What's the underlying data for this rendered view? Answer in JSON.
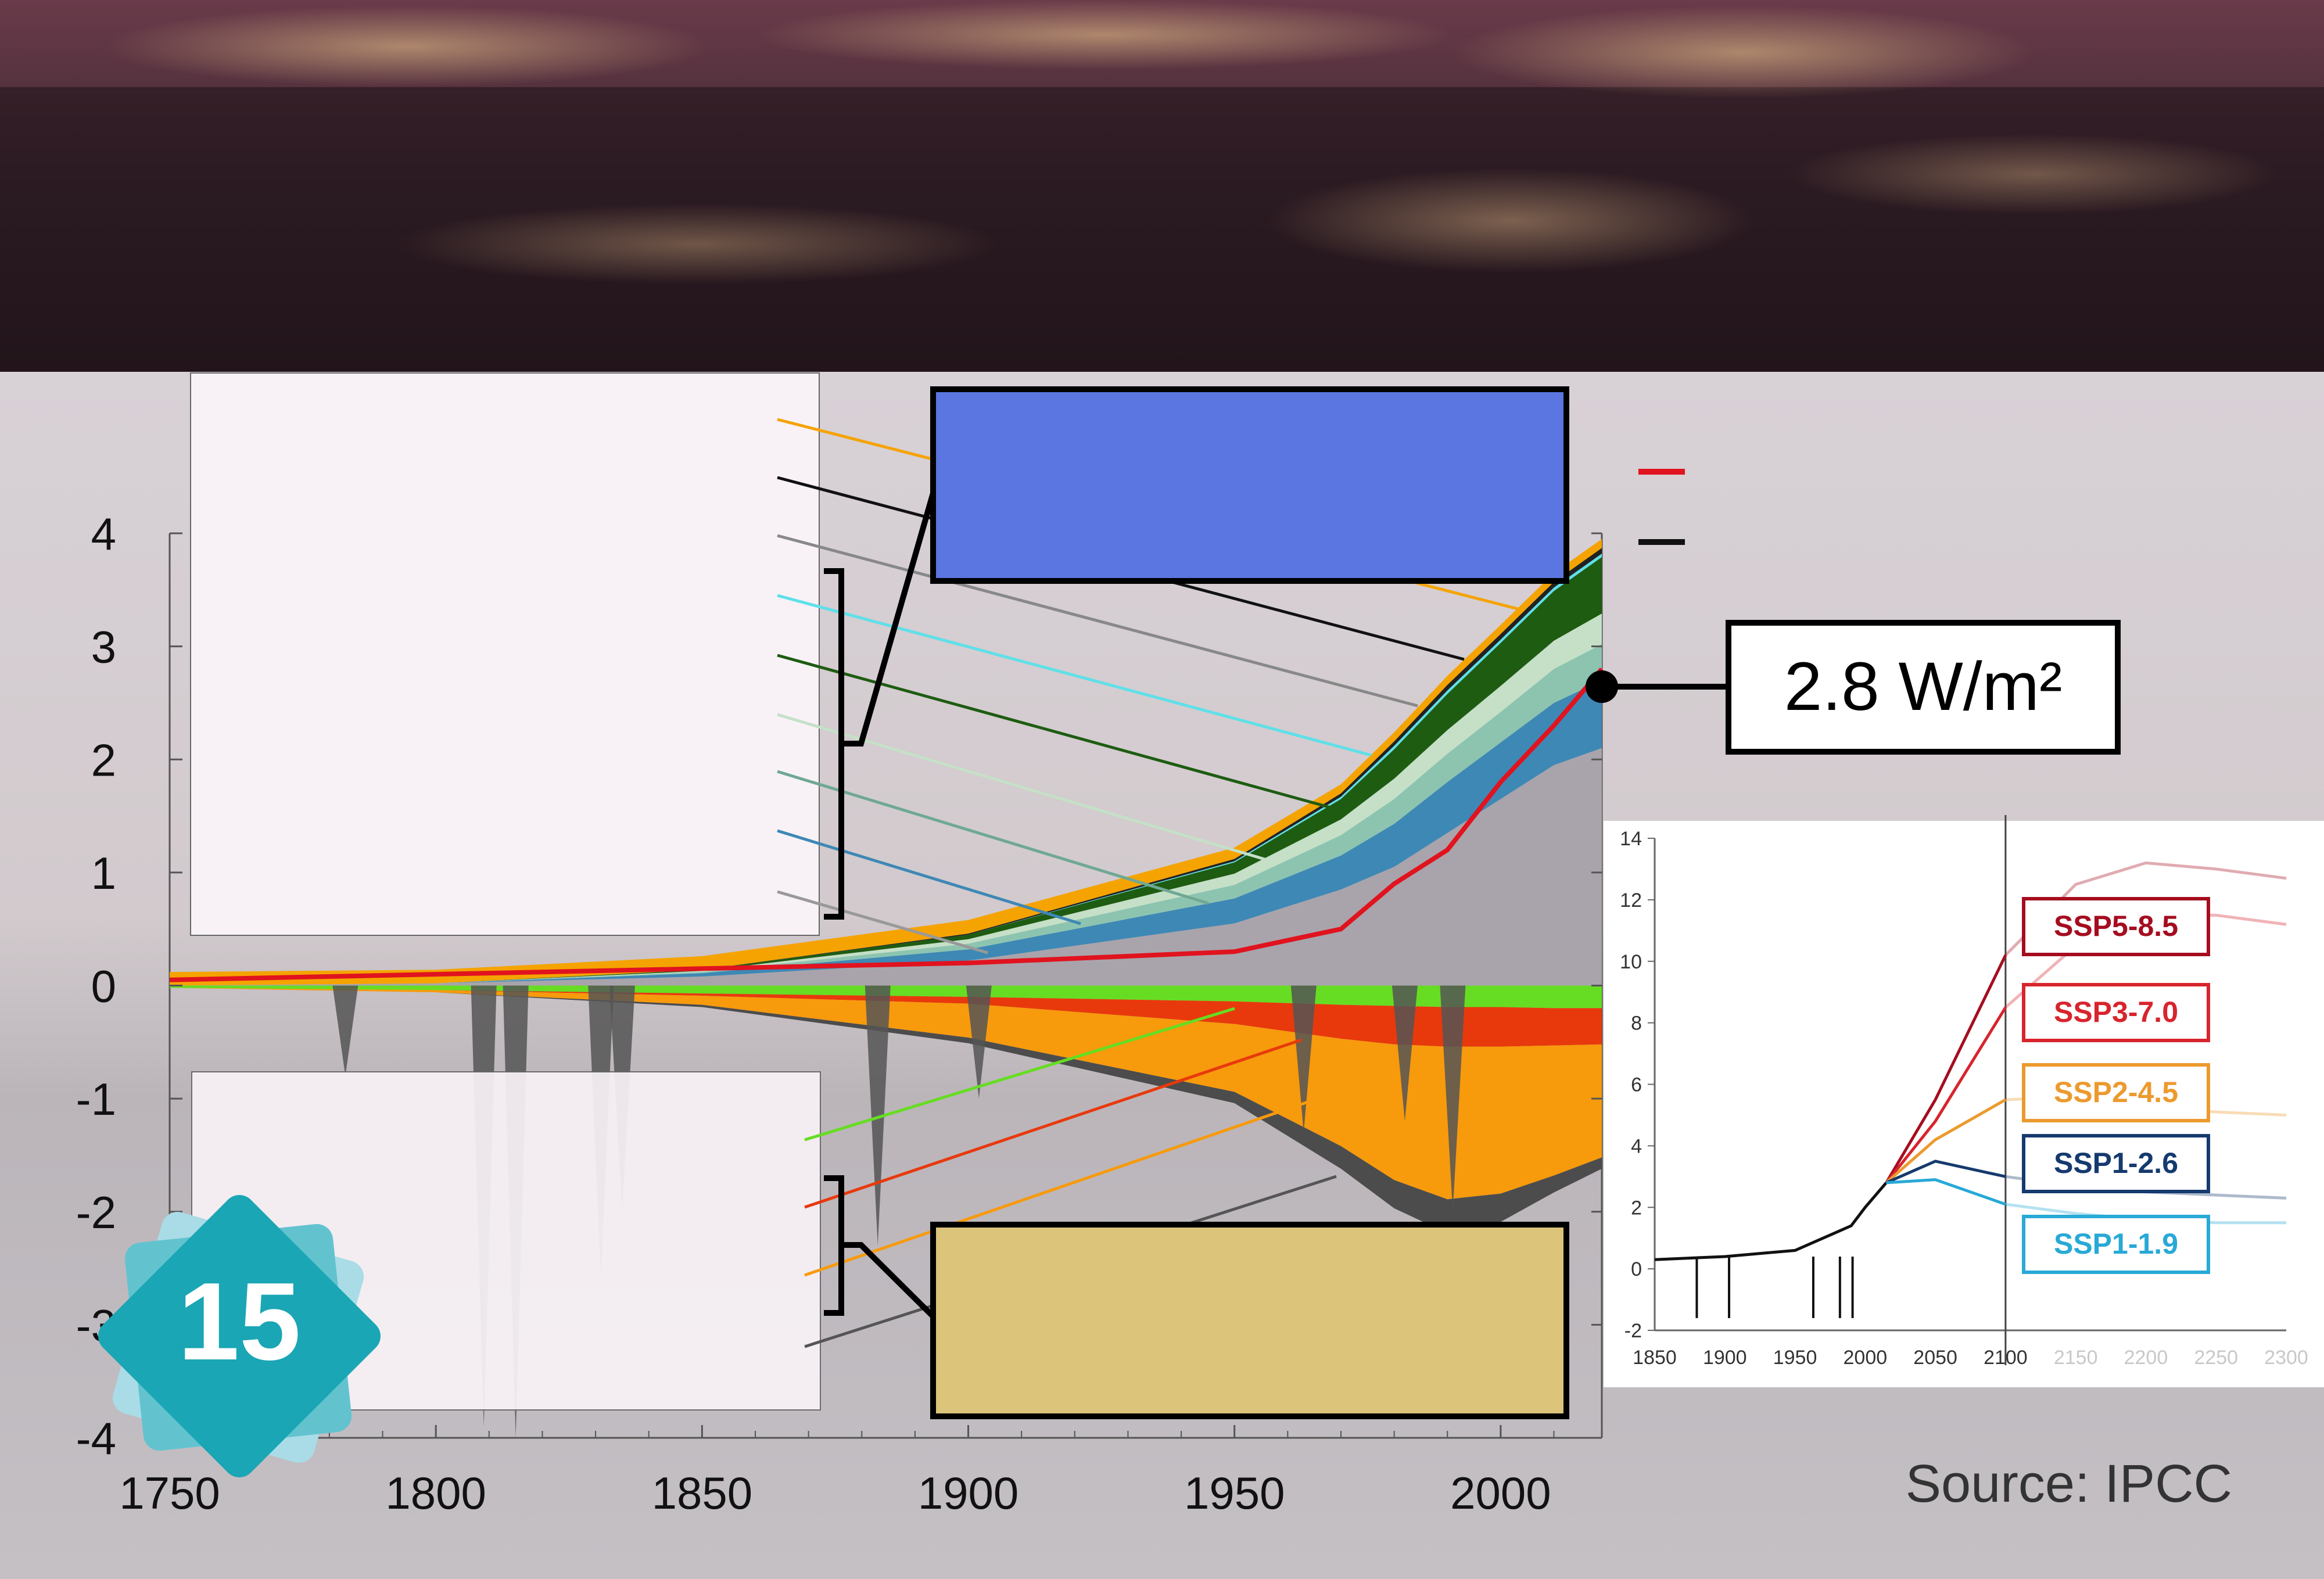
{
  "slide": {
    "number": "15",
    "source": "Source: IPCC",
    "annotation_value": "2.8 W/m²"
  },
  "colors": {
    "sky_top": "#4a2a3a",
    "banner_dark": "#231519",
    "body_bg": "#cfc9ce",
    "positive_box": "#5b76e0",
    "negative_box": "#dcc57a",
    "badge": "#1aa6b5"
  },
  "chart_data": [
    {
      "type": "area",
      "xlim": [
        1750,
        2019
      ],
      "ylim": [
        -4,
        4
      ],
      "x_ticks": [
        "1750",
        "1800",
        "1850",
        "1900",
        "1950",
        "2000"
      ],
      "y_ticks": [
        "4",
        "3",
        "2",
        "1",
        "0",
        "-1",
        "-2",
        "-3",
        "-4"
      ],
      "x": [
        1750,
        1800,
        1850,
        1900,
        1950,
        1970,
        1980,
        1990,
        2000,
        2010,
        2019
      ],
      "positive_stack": [
        {
          "color": "#a9a4ab",
          "values": [
            0.0,
            0.02,
            0.08,
            0.22,
            0.55,
            0.85,
            1.05,
            1.35,
            1.65,
            1.95,
            2.1
          ]
        },
        {
          "color": "#3e88b5",
          "values": [
            0.0,
            0.0,
            0.03,
            0.1,
            0.22,
            0.3,
            0.38,
            0.45,
            0.5,
            0.55,
            0.6
          ]
        },
        {
          "color": "#8cc4b0",
          "values": [
            0.0,
            0.0,
            0.01,
            0.05,
            0.12,
            0.18,
            0.22,
            0.25,
            0.27,
            0.3,
            0.32
          ]
        },
        {
          "color": "#c5e0c7",
          "values": [
            0.0,
            0.0,
            0.01,
            0.04,
            0.1,
            0.14,
            0.18,
            0.21,
            0.23,
            0.25,
            0.27
          ]
        },
        {
          "color": "#1e5c12",
          "values": [
            0.0,
            0.0,
            0.01,
            0.04,
            0.1,
            0.18,
            0.26,
            0.32,
            0.38,
            0.44,
            0.5
          ]
        },
        {
          "color": "#5ee0e8",
          "values": [
            0.0,
            0.0,
            0.0,
            0.0,
            0.01,
            0.02,
            0.03,
            0.03,
            0.03,
            0.03,
            0.03
          ]
        },
        {
          "color": "#222222",
          "values": [
            0.0,
            0.0,
            0.0,
            0.01,
            0.02,
            0.03,
            0.04,
            0.05,
            0.05,
            0.05,
            0.05
          ]
        },
        {
          "color": "#f5a300",
          "values": [
            0.12,
            0.12,
            0.12,
            0.12,
            0.1,
            0.08,
            0.08,
            0.08,
            0.08,
            0.08,
            0.08
          ]
        }
      ],
      "negative_stack": [
        {
          "color": "#66dd22",
          "values": [
            -0.02,
            -0.04,
            -0.07,
            -0.1,
            -0.14,
            -0.17,
            -0.18,
            -0.19,
            -0.19,
            -0.2,
            -0.2
          ]
        },
        {
          "color": "#e8390c",
          "values": [
            0.0,
            0.0,
            -0.02,
            -0.06,
            -0.2,
            -0.3,
            -0.34,
            -0.35,
            -0.35,
            -0.33,
            -0.32
          ]
        },
        {
          "color": "#f79a0c",
          "values": [
            0.0,
            -0.02,
            -0.08,
            -0.3,
            -0.6,
            -0.95,
            -1.2,
            -1.35,
            -1.3,
            -1.15,
            -1.0
          ]
        },
        {
          "color": "#4c4c4c",
          "values": [
            0.0,
            0.0,
            -0.02,
            -0.05,
            -0.1,
            -0.2,
            -0.25,
            -0.3,
            -0.25,
            -0.15,
            -0.1
          ]
        }
      ],
      "net_line": {
        "color": "#e0131f",
        "values": [
          0.05,
          0.1,
          0.15,
          0.2,
          0.3,
          0.5,
          0.9,
          1.2,
          1.8,
          2.3,
          2.8
        ]
      },
      "volcanic_spikes": [
        {
          "x": 1783,
          "y": -0.8
        },
        {
          "x": 1809,
          "y": -3.9
        },
        {
          "x": 1815,
          "y": -4.0
        },
        {
          "x": 1831,
          "y": -2.6
        },
        {
          "x": 1835,
          "y": -2.0
        },
        {
          "x": 1883,
          "y": -2.3
        },
        {
          "x": 1902,
          "y": -1.0
        },
        {
          "x": 1963,
          "y": -1.3
        },
        {
          "x": 1982,
          "y": -1.2
        },
        {
          "x": 1991,
          "y": -2.0
        }
      ]
    },
    {
      "type": "line",
      "xlim": [
        1850,
        2300
      ],
      "ylim": [
        -2,
        14
      ],
      "x_ticks": [
        "1850",
        "1900",
        "1950",
        "2000",
        "2050",
        "2100",
        "2150",
        "2200",
        "2250",
        "2300"
      ],
      "y_ticks": [
        "14",
        "12",
        "10",
        "8",
        "6",
        "4",
        "2",
        "0",
        "-2"
      ],
      "historical": {
        "color": "#111111",
        "x": [
          1850,
          1900,
          1950,
          1990,
          2000,
          2015
        ],
        "y": [
          0.3,
          0.4,
          0.6,
          1.4,
          2.0,
          2.8
        ]
      },
      "series": [
        {
          "name": "SSP5-8.5",
          "color": "#a50d1f",
          "x": [
            2015,
            2050,
            2100,
            2150,
            2200,
            2250,
            2300
          ],
          "y": [
            2.8,
            5.5,
            10.2,
            12.5,
            13.2,
            13.0,
            12.7
          ]
        },
        {
          "name": "SSP3-7.0",
          "color": "#d8242d",
          "x": [
            2015,
            2050,
            2100,
            2150,
            2200,
            2250,
            2300
          ],
          "y": [
            2.8,
            4.8,
            8.5,
            10.5,
            11.5,
            11.5,
            11.2
          ]
        },
        {
          "name": "SSP2-4.5",
          "color": "#ec9a2e",
          "x": [
            2015,
            2050,
            2100,
            2150,
            2200,
            2250,
            2300
          ],
          "y": [
            2.8,
            4.2,
            5.5,
            5.6,
            5.3,
            5.1,
            5.0
          ]
        },
        {
          "name": "SSP1-2.6",
          "color": "#153a6e",
          "x": [
            2015,
            2050,
            2100,
            2150,
            2200,
            2250,
            2300
          ],
          "y": [
            2.8,
            3.5,
            3.0,
            2.7,
            2.5,
            2.4,
            2.3
          ]
        },
        {
          "name": "SSP1-1.9",
          "color": "#28a9d6",
          "x": [
            2015,
            2050,
            2100,
            2150,
            2200,
            2250,
            2300
          ],
          "y": [
            2.8,
            2.9,
            2.1,
            1.8,
            1.6,
            1.5,
            1.5
          ]
        }
      ]
    }
  ]
}
